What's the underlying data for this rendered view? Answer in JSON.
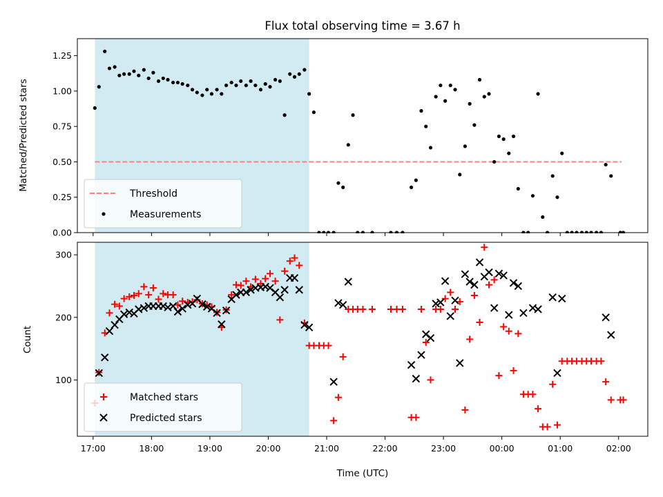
{
  "title": "Flux total observing time = 3.67 h",
  "colors": {
    "highlight": "#add8e6",
    "threshold": "#ff7f7f",
    "measurement": "#000000",
    "matched": "#ff0000",
    "predicted": "#000000"
  },
  "chart_data": [
    {
      "type": "scatter",
      "ylabel": "Matched/Predicted stars",
      "xlabel": "",
      "x_unit": "hours (UTC, 24+ = next day)",
      "xlim": [
        16.73,
        26.5
      ],
      "ylim": [
        0.0,
        1.37
      ],
      "yticks": [
        0.0,
        0.25,
        0.5,
        0.75,
        1.0,
        1.25
      ],
      "ytick_labels": [
        "0.00",
        "0.25",
        "0.50",
        "0.75",
        "1.00",
        "1.25"
      ],
      "xticks": [
        17,
        18,
        19,
        20,
        21,
        22,
        23,
        24,
        25,
        26
      ],
      "highlight_span": [
        17.03,
        20.7
      ],
      "threshold": {
        "name": "Threshold",
        "x": [
          17.03,
          26.05
        ],
        "y": 0.5
      },
      "legend_position": "lower left",
      "series": [
        {
          "name": "Measurements",
          "marker": "dot",
          "x": [
            17.03,
            17.1,
            17.2,
            17.28,
            17.37,
            17.45,
            17.53,
            17.62,
            17.7,
            17.78,
            17.87,
            17.95,
            18.03,
            18.12,
            18.2,
            18.28,
            18.37,
            18.45,
            18.53,
            18.62,
            18.7,
            18.78,
            18.87,
            18.95,
            19.03,
            19.12,
            19.2,
            19.28,
            19.37,
            19.45,
            19.53,
            19.62,
            19.7,
            19.78,
            19.87,
            19.95,
            20.03,
            20.12,
            20.2,
            20.28,
            20.37,
            20.45,
            20.53,
            20.62,
            20.7,
            20.78,
            20.87,
            20.95,
            21.03,
            21.12,
            21.2,
            21.28,
            21.37,
            21.45,
            21.53,
            21.62,
            21.78,
            22.1,
            22.2,
            22.3,
            22.45,
            22.53,
            22.62,
            22.7,
            22.78,
            22.87,
            22.95,
            23.03,
            23.12,
            23.2,
            23.28,
            23.37,
            23.45,
            23.53,
            23.62,
            23.7,
            23.78,
            23.87,
            23.95,
            24.03,
            24.12,
            24.2,
            24.28,
            24.37,
            24.45,
            24.53,
            24.62,
            24.7,
            24.78,
            24.87,
            24.95,
            25.03,
            25.12,
            25.2,
            25.28,
            25.37,
            25.45,
            25.53,
            25.62,
            25.7,
            25.78,
            25.87,
            26.03,
            26.08
          ],
          "y": [
            0.88,
            1.03,
            1.28,
            1.16,
            1.17,
            1.11,
            1.12,
            1.12,
            1.14,
            1.11,
            1.15,
            1.09,
            1.13,
            1.07,
            1.09,
            1.08,
            1.06,
            1.06,
            1.05,
            1.04,
            1.01,
            0.99,
            0.97,
            1.01,
            0.98,
            1.01,
            0.98,
            1.04,
            1.06,
            1.04,
            1.07,
            1.04,
            1.07,
            1.04,
            1.01,
            1.05,
            1.03,
            1.08,
            1.07,
            0.83,
            1.12,
            1.1,
            1.12,
            1.15,
            0.98,
            0.85,
            0.0,
            0.0,
            0.0,
            0.0,
            0.35,
            0.32,
            0.62,
            0.83,
            0.0,
            0.0,
            0.0,
            0.0,
            0.0,
            0.0,
            0.32,
            0.37,
            0.86,
            0.75,
            0.6,
            0.96,
            1.04,
            0.93,
            1.04,
            1.01,
            0.41,
            0.61,
            0.91,
            0.76,
            1.08,
            0.96,
            0.98,
            0.5,
            0.68,
            0.66,
            0.56,
            0.68,
            0.31,
            0.0,
            0.0,
            0.26,
            0.98,
            0.11,
            0.0,
            0.4,
            0.25,
            0.56,
            0.0,
            0.0,
            0.0,
            0.0,
            0.0,
            0.0,
            0.0,
            0.0,
            0.48,
            0.4,
            0.0,
            0.0
          ]
        }
      ]
    },
    {
      "type": "scatter",
      "ylabel": "Count",
      "xlabel": "Time (UTC)",
      "x_unit": "hours (UTC, 24+ = next day)",
      "xlim": [
        16.73,
        26.5
      ],
      "ylim": [
        10,
        320
      ],
      "yticks": [
        100,
        200,
        300
      ],
      "ytick_labels": [
        "100",
        "200",
        "300"
      ],
      "xticks": [
        17,
        18,
        19,
        20,
        21,
        22,
        23,
        24,
        25,
        26
      ],
      "xtick_labels": [
        "17:00",
        "18:00",
        "19:00",
        "20:00",
        "21:00",
        "22:00",
        "23:00",
        "00:00",
        "01:00",
        "02:00"
      ],
      "highlight_span": [
        17.03,
        20.7
      ],
      "legend_position": "lower left",
      "series": [
        {
          "name": "Matched stars",
          "marker": "plus",
          "x": [
            17.03,
            17.1,
            17.2,
            17.28,
            17.37,
            17.45,
            17.53,
            17.62,
            17.7,
            17.78,
            17.87,
            17.95,
            18.03,
            18.12,
            18.2,
            18.28,
            18.37,
            18.45,
            18.53,
            18.62,
            18.7,
            18.78,
            18.87,
            18.95,
            19.03,
            19.12,
            19.2,
            19.28,
            19.37,
            19.45,
            19.53,
            19.62,
            19.7,
            19.78,
            19.87,
            19.95,
            20.03,
            20.12,
            20.2,
            20.28,
            20.37,
            20.45,
            20.53,
            20.62,
            20.7,
            20.78,
            20.87,
            20.95,
            21.03,
            21.12,
            21.2,
            21.28,
            21.37,
            21.45,
            21.53,
            21.62,
            21.78,
            22.1,
            22.2,
            22.3,
            22.45,
            22.53,
            22.62,
            22.7,
            22.78,
            22.87,
            22.95,
            23.03,
            23.12,
            23.2,
            23.28,
            23.37,
            23.45,
            23.53,
            23.62,
            23.7,
            23.78,
            23.87,
            23.95,
            24.03,
            24.12,
            24.2,
            24.28,
            24.37,
            24.45,
            24.53,
            24.62,
            24.7,
            24.78,
            24.87,
            24.95,
            25.03,
            25.12,
            25.2,
            25.28,
            25.37,
            25.45,
            25.53,
            25.62,
            25.7,
            25.78,
            25.87,
            26.03,
            26.08
          ],
          "y": [
            63,
            112,
            175,
            207,
            221,
            218,
            230,
            233,
            235,
            238,
            249,
            236,
            247,
            229,
            238,
            236,
            236,
            220,
            226,
            224,
            225,
            228,
            222,
            220,
            217,
            208,
            184,
            212,
            236,
            252,
            251,
            258,
            249,
            261,
            254,
            262,
            270,
            258,
            196,
            274,
            290,
            295,
            283,
            191,
            155,
            155,
            155,
            155,
            155,
            35,
            72,
            137,
            213,
            213,
            213,
            213,
            213,
            213,
            213,
            213,
            40,
            40,
            213,
            160,
            100,
            213,
            213,
            230,
            240,
            213,
            225,
            52,
            165,
            235,
            192,
            312,
            252,
            260,
            107,
            185,
            178,
            115,
            174,
            77,
            77,
            77,
            54,
            25,
            25,
            93,
            28,
            130,
            130,
            130,
            130,
            130,
            130,
            130,
            130,
            130,
            97,
            68,
            68,
            68
          ]
        },
        {
          "name": "Predicted stars",
          "marker": "x",
          "x": [
            17.1,
            17.2,
            17.28,
            17.37,
            17.45,
            17.53,
            17.62,
            17.7,
            17.78,
            17.87,
            17.95,
            18.03,
            18.12,
            18.2,
            18.28,
            18.37,
            18.45,
            18.53,
            18.62,
            18.7,
            18.78,
            18.87,
            18.95,
            19.03,
            19.12,
            19.2,
            19.28,
            19.37,
            19.45,
            19.53,
            19.62,
            19.7,
            19.78,
            19.87,
            19.95,
            20.03,
            20.12,
            20.2,
            20.28,
            20.37,
            20.45,
            20.53,
            20.62,
            20.7,
            21.12,
            21.2,
            21.28,
            21.37,
            22.45,
            22.53,
            22.62,
            22.7,
            22.78,
            22.87,
            22.95,
            23.03,
            23.12,
            23.2,
            23.28,
            23.37,
            23.45,
            23.53,
            23.62,
            23.7,
            23.78,
            23.87,
            23.95,
            24.03,
            24.12,
            24.2,
            24.28,
            24.37,
            24.53,
            24.62,
            24.87,
            24.95,
            25.03,
            25.78,
            25.87
          ],
          "y": [
            111,
            136,
            178,
            188,
            197,
            205,
            208,
            206,
            213,
            215,
            218,
            218,
            218,
            218,
            216,
            218,
            209,
            214,
            220,
            222,
            230,
            221,
            217,
            214,
            207,
            189,
            211,
            229,
            236,
            240,
            240,
            244,
            247,
            248,
            249,
            247,
            240,
            232,
            244,
            263,
            263,
            244,
            188,
            184,
            97,
            223,
            220,
            257,
            124,
            102,
            140,
            173,
            167,
            222,
            224,
            258,
            202,
            227,
            127,
            269,
            257,
            252,
            288,
            265,
            272,
            215,
            270,
            267,
            204,
            255,
            250,
            207,
            215,
            213,
            232,
            111,
            230,
            200,
            172
          ]
        }
      ]
    }
  ]
}
